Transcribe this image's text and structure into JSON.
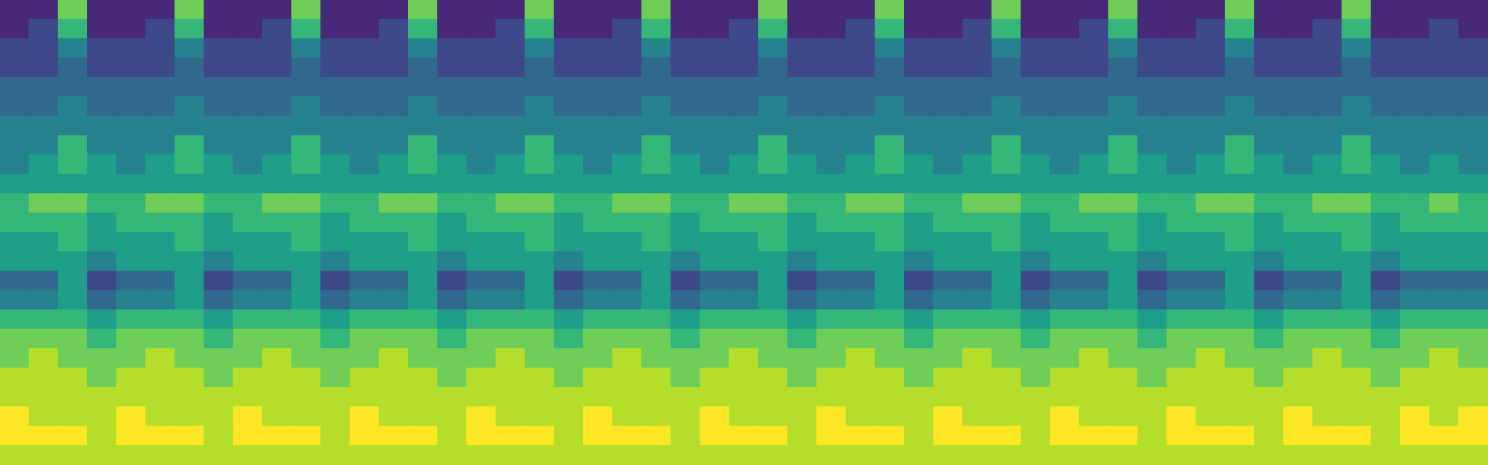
{
  "chart_data": {
    "type": "heatmap",
    "color": "viridis",
    "zlim": [
      0,
      9
    ],
    "tick_labels": false,
    "cells": [
      [
        1,
        1,
        7,
        1,
        1,
        1,
        7,
        1,
        1,
        1,
        7,
        1,
        1,
        1,
        7,
        1,
        1,
        1,
        7,
        1,
        1,
        1,
        7,
        1,
        1,
        1,
        7,
        1,
        1,
        1,
        7,
        1,
        1,
        1,
        7,
        1,
        1,
        1,
        7,
        1,
        1,
        1,
        7,
        1,
        1,
        1,
        7,
        1,
        1,
        1,
        1
      ],
      [
        1,
        2,
        6,
        1,
        1,
        2,
        6,
        1,
        1,
        2,
        6,
        1,
        1,
        2,
        6,
        1,
        1,
        2,
        6,
        1,
        1,
        2,
        6,
        1,
        1,
        2,
        6,
        1,
        1,
        2,
        6,
        1,
        1,
        2,
        6,
        1,
        1,
        2,
        6,
        1,
        1,
        2,
        6,
        1,
        1,
        2,
        6,
        1,
        1,
        2,
        1
      ],
      [
        2,
        2,
        4,
        2,
        2,
        2,
        4,
        2,
        2,
        2,
        4,
        2,
        2,
        2,
        4,
        2,
        2,
        2,
        4,
        2,
        2,
        2,
        4,
        2,
        2,
        2,
        4,
        2,
        2,
        2,
        4,
        2,
        2,
        2,
        4,
        2,
        2,
        2,
        4,
        2,
        2,
        2,
        4,
        2,
        2,
        2,
        4,
        2,
        2,
        2,
        2
      ],
      [
        2,
        2,
        3,
        2,
        2,
        2,
        3,
        2,
        2,
        2,
        3,
        2,
        2,
        2,
        3,
        2,
        2,
        2,
        3,
        2,
        2,
        2,
        3,
        2,
        2,
        2,
        3,
        2,
        2,
        2,
        3,
        2,
        2,
        2,
        3,
        2,
        2,
        2,
        3,
        2,
        2,
        2,
        3,
        2,
        2,
        2,
        3,
        2,
        2,
        2,
        2
      ],
      [
        3,
        3,
        3,
        3,
        3,
        3,
        3,
        3,
        3,
        3,
        3,
        3,
        3,
        3,
        3,
        3,
        3,
        3,
        3,
        3,
        3,
        3,
        3,
        3,
        3,
        3,
        3,
        3,
        3,
        3,
        3,
        3,
        3,
        3,
        3,
        3,
        3,
        3,
        3,
        3,
        3,
        3,
        3,
        3,
        3,
        3,
        3,
        3,
        3,
        3,
        3
      ],
      [
        3,
        3,
        4,
        3,
        3,
        3,
        4,
        3,
        3,
        3,
        4,
        3,
        3,
        3,
        4,
        3,
        3,
        3,
        4,
        3,
        3,
        3,
        4,
        3,
        3,
        3,
        4,
        3,
        3,
        3,
        4,
        3,
        3,
        3,
        4,
        3,
        3,
        3,
        4,
        3,
        3,
        3,
        4,
        3,
        3,
        3,
        4,
        3,
        3,
        3,
        3
      ],
      [
        4,
        4,
        4,
        4,
        4,
        4,
        4,
        4,
        4,
        4,
        4,
        4,
        4,
        4,
        4,
        4,
        4,
        4,
        4,
        4,
        4,
        4,
        4,
        4,
        4,
        4,
        4,
        4,
        4,
        4,
        4,
        4,
        4,
        4,
        4,
        4,
        4,
        4,
        4,
        4,
        4,
        4,
        4,
        4,
        4,
        4,
        4,
        4,
        4,
        4,
        4
      ],
      [
        4,
        4,
        6,
        4,
        4,
        4,
        6,
        4,
        4,
        4,
        6,
        4,
        4,
        4,
        6,
        4,
        4,
        4,
        6,
        4,
        4,
        4,
        6,
        4,
        4,
        4,
        6,
        4,
        4,
        4,
        6,
        4,
        4,
        4,
        6,
        4,
        4,
        4,
        6,
        4,
        4,
        4,
        6,
        4,
        4,
        4,
        6,
        4,
        4,
        4,
        4
      ],
      [
        4,
        5,
        6,
        5,
        4,
        5,
        6,
        5,
        4,
        5,
        6,
        5,
        4,
        5,
        6,
        5,
        4,
        5,
        6,
        5,
        4,
        5,
        6,
        5,
        4,
        5,
        6,
        5,
        4,
        5,
        6,
        5,
        4,
        5,
        6,
        5,
        4,
        5,
        6,
        5,
        4,
        5,
        6,
        5,
        4,
        5,
        6,
        5,
        4,
        5,
        4
      ],
      [
        5,
        5,
        5,
        5,
        5,
        5,
        5,
        5,
        5,
        5,
        5,
        5,
        5,
        5,
        5,
        5,
        5,
        5,
        5,
        5,
        5,
        5,
        5,
        5,
        5,
        5,
        5,
        5,
        5,
        5,
        5,
        5,
        5,
        5,
        5,
        5,
        5,
        5,
        5,
        5,
        5,
        5,
        5,
        5,
        5,
        5,
        5,
        5,
        5,
        5,
        5
      ],
      [
        6,
        7,
        7,
        6,
        6,
        7,
        7,
        6,
        6,
        7,
        7,
        6,
        6,
        7,
        7,
        6,
        6,
        7,
        7,
        6,
        6,
        7,
        7,
        6,
        6,
        7,
        7,
        6,
        6,
        7,
        7,
        6,
        6,
        7,
        7,
        6,
        6,
        7,
        7,
        6,
        6,
        7,
        7,
        6,
        6,
        7,
        7,
        6,
        6,
        7,
        6
      ],
      [
        6,
        6,
        6,
        5,
        6,
        6,
        6,
        5,
        6,
        6,
        6,
        5,
        6,
        6,
        6,
        5,
        6,
        6,
        6,
        5,
        6,
        6,
        6,
        5,
        6,
        6,
        6,
        5,
        6,
        6,
        6,
        5,
        6,
        6,
        6,
        5,
        6,
        6,
        6,
        5,
        6,
        6,
        6,
        5,
        6,
        6,
        6,
        5,
        6,
        6,
        6
      ],
      [
        5,
        5,
        6,
        5,
        5,
        5,
        6,
        5,
        5,
        5,
        6,
        5,
        5,
        5,
        6,
        5,
        5,
        5,
        6,
        5,
        5,
        5,
        6,
        5,
        5,
        5,
        6,
        5,
        5,
        5,
        6,
        5,
        5,
        5,
        6,
        5,
        5,
        5,
        6,
        5,
        5,
        5,
        6,
        5,
        5,
        5,
        6,
        5,
        5,
        5,
        5
      ],
      [
        5,
        5,
        5,
        4,
        5,
        5,
        5,
        4,
        5,
        5,
        5,
        4,
        5,
        5,
        5,
        4,
        5,
        5,
        5,
        4,
        5,
        5,
        5,
        4,
        5,
        5,
        5,
        4,
        5,
        5,
        5,
        4,
        5,
        5,
        5,
        4,
        5,
        5,
        5,
        4,
        5,
        5,
        5,
        4,
        5,
        5,
        5,
        4,
        5,
        5,
        5
      ],
      [
        3,
        3,
        5,
        2,
        3,
        3,
        5,
        2,
        3,
        3,
        5,
        2,
        3,
        3,
        5,
        2,
        3,
        3,
        5,
        2,
        3,
        3,
        5,
        2,
        3,
        3,
        5,
        2,
        3,
        3,
        5,
        2,
        3,
        3,
        5,
        2,
        3,
        3,
        5,
        2,
        3,
        3,
        5,
        2,
        3,
        3,
        5,
        2,
        3,
        3,
        3
      ],
      [
        4,
        4,
        5,
        3,
        4,
        4,
        5,
        3,
        4,
        4,
        5,
        3,
        4,
        4,
        5,
        3,
        4,
        4,
        5,
        3,
        4,
        4,
        5,
        3,
        4,
        4,
        5,
        3,
        4,
        4,
        5,
        3,
        4,
        4,
        5,
        3,
        4,
        4,
        5,
        3,
        4,
        4,
        5,
        3,
        4,
        4,
        5,
        3,
        4,
        4,
        4
      ],
      [
        6,
        6,
        6,
        5,
        6,
        6,
        6,
        5,
        6,
        6,
        6,
        5,
        6,
        6,
        6,
        5,
        6,
        6,
        6,
        5,
        6,
        6,
        6,
        5,
        6,
        6,
        6,
        5,
        6,
        6,
        6,
        5,
        6,
        6,
        6,
        5,
        6,
        6,
        6,
        5,
        6,
        6,
        6,
        5,
        6,
        6,
        6,
        5,
        6,
        6,
        6
      ],
      [
        7,
        7,
        7,
        6,
        7,
        7,
        7,
        6,
        7,
        7,
        7,
        6,
        7,
        7,
        7,
        6,
        7,
        7,
        7,
        6,
        7,
        7,
        7,
        6,
        7,
        7,
        7,
        6,
        7,
        7,
        7,
        6,
        7,
        7,
        7,
        6,
        7,
        7,
        7,
        6,
        7,
        7,
        7,
        6,
        7,
        7,
        7,
        6,
        7,
        7,
        7
      ],
      [
        7,
        8,
        7,
        7,
        7,
        8,
        7,
        7,
        7,
        8,
        7,
        7,
        7,
        8,
        7,
        7,
        7,
        8,
        7,
        7,
        7,
        8,
        7,
        7,
        7,
        8,
        7,
        7,
        7,
        8,
        7,
        7,
        7,
        8,
        7,
        7,
        7,
        8,
        7,
        7,
        7,
        8,
        7,
        7,
        7,
        8,
        7,
        7,
        7,
        8,
        7
      ],
      [
        8,
        8,
        8,
        7,
        8,
        8,
        8,
        7,
        8,
        8,
        8,
        7,
        8,
        8,
        8,
        7,
        8,
        8,
        8,
        7,
        8,
        8,
        8,
        7,
        8,
        8,
        8,
        7,
        8,
        8,
        8,
        7,
        8,
        8,
        8,
        7,
        8,
        8,
        8,
        7,
        8,
        8,
        8,
        7,
        8,
        8,
        8,
        7,
        8,
        8,
        8
      ],
      [
        8,
        8,
        8,
        8,
        8,
        8,
        8,
        8,
        8,
        8,
        8,
        8,
        8,
        8,
        8,
        8,
        8,
        8,
        8,
        8,
        8,
        8,
        8,
        8,
        8,
        8,
        8,
        8,
        8,
        8,
        8,
        8,
        8,
        8,
        8,
        8,
        8,
        8,
        8,
        8,
        8,
        8,
        8,
        8,
        8,
        8,
        8,
        8,
        8,
        8,
        8
      ],
      [
        9,
        8,
        8,
        8,
        9,
        8,
        8,
        8,
        9,
        8,
        8,
        8,
        9,
        8,
        8,
        8,
        9,
        8,
        8,
        8,
        9,
        8,
        8,
        8,
        9,
        8,
        8,
        8,
        9,
        8,
        8,
        8,
        9,
        8,
        8,
        8,
        9,
        8,
        8,
        8,
        9,
        8,
        8,
        8,
        9,
        8,
        8,
        8,
        9,
        8,
        9
      ],
      [
        9,
        9,
        9,
        8,
        9,
        9,
        9,
        8,
        9,
        9,
        9,
        8,
        9,
        9,
        9,
        8,
        9,
        9,
        9,
        8,
        9,
        9,
        9,
        8,
        9,
        9,
        9,
        8,
        9,
        9,
        9,
        8,
        9,
        9,
        9,
        8,
        9,
        9,
        9,
        8,
        9,
        9,
        9,
        8,
        9,
        9,
        9,
        8,
        9,
        9,
        9
      ],
      [
        8,
        8,
        8,
        8,
        8,
        8,
        8,
        8,
        8,
        8,
        8,
        8,
        8,
        8,
        8,
        8,
        8,
        8,
        8,
        8,
        8,
        8,
        8,
        8,
        8,
        8,
        8,
        8,
        8,
        8,
        8,
        8,
        8,
        8,
        8,
        8,
        8,
        8,
        8,
        8,
        8,
        8,
        8,
        8,
        8,
        8,
        8,
        8,
        8,
        8,
        8
      ]
    ]
  }
}
